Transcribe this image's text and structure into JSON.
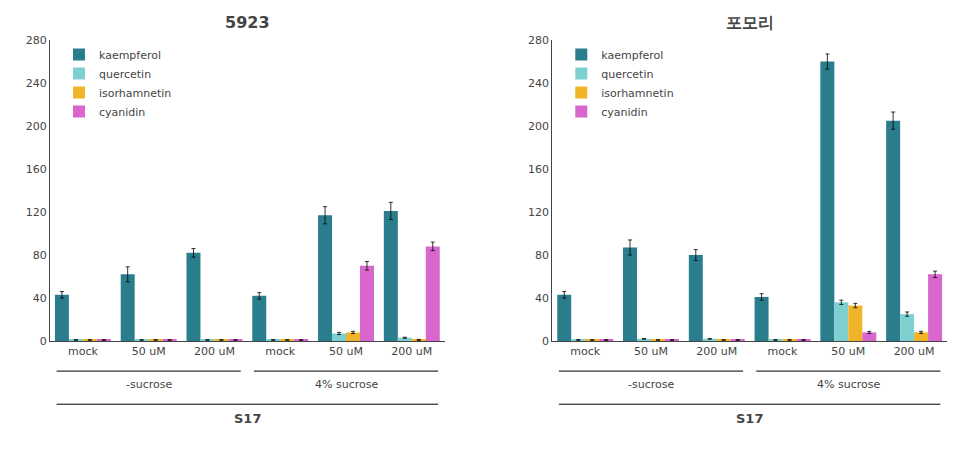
{
  "chart_data": [
    {
      "type": "bar",
      "title": "5923",
      "categories": [
        "mock",
        "50 uM",
        "200 uM",
        "mock",
        "50 uM",
        "200 uM"
      ],
      "series": [
        {
          "name": "kaempferol",
          "color": "#2a7d8c",
          "values": [
            43,
            62,
            82,
            42,
            117,
            121
          ],
          "errors": [
            3,
            7,
            4,
            3,
            8,
            8
          ]
        },
        {
          "name": "quercetin",
          "color": "#7ecfcf",
          "values": [
            1,
            1,
            1,
            1,
            7,
            3
          ],
          "errors": [
            0.3,
            0.3,
            0.3,
            0.3,
            1,
            0.5
          ]
        },
        {
          "name": "isorhamnetin",
          "color": "#f0b429",
          "values": [
            1,
            1,
            1,
            1,
            8,
            1
          ],
          "errors": [
            0.3,
            0.3,
            0.3,
            0.3,
            1,
            0.5
          ]
        },
        {
          "name": "cyanidin",
          "color": "#d966cc",
          "values": [
            1,
            1,
            1,
            1,
            70,
            88
          ],
          "errors": [
            0.3,
            0.3,
            0.3,
            0.3,
            4,
            4
          ]
        }
      ],
      "annotations": [
        "-sucrose",
        "4% sucrose",
        "S17"
      ],
      "ylim": [
        0,
        280
      ],
      "yticks": [
        0,
        40,
        80,
        120,
        160,
        200,
        240,
        280
      ],
      "grid": false,
      "legend": "upper left"
    },
    {
      "type": "bar",
      "title": "포모리",
      "categories": [
        "mock",
        "50 uM",
        "200 uM",
        "mock",
        "50 uM",
        "200 uM"
      ],
      "series": [
        {
          "name": "kaempferol",
          "color": "#2a7d8c",
          "values": [
            43,
            87,
            80,
            41,
            260,
            205
          ],
          "errors": [
            3,
            7,
            5,
            3,
            7,
            8
          ]
        },
        {
          "name": "quercetin",
          "color": "#7ecfcf",
          "values": [
            1,
            2,
            2,
            1,
            36,
            25
          ],
          "errors": [
            0.3,
            0.3,
            0.3,
            0.3,
            2,
            2
          ]
        },
        {
          "name": "isorhamnetin",
          "color": "#f0b429",
          "values": [
            1,
            1,
            1,
            1,
            33,
            8
          ],
          "errors": [
            0.3,
            0.3,
            0.3,
            0.3,
            2,
            1
          ]
        },
        {
          "name": "cyanidin",
          "color": "#d966cc",
          "values": [
            1,
            1,
            1,
            1,
            8,
            62
          ],
          "errors": [
            0.3,
            0.3,
            0.3,
            0.3,
            1,
            3
          ]
        }
      ],
      "annotations": [
        "-sucrose",
        "4% sucrose",
        "S17"
      ],
      "ylim": [
        0,
        280
      ],
      "yticks": [
        0,
        40,
        80,
        120,
        160,
        200,
        240,
        280
      ],
      "grid": false,
      "legend": "upper left"
    }
  ]
}
